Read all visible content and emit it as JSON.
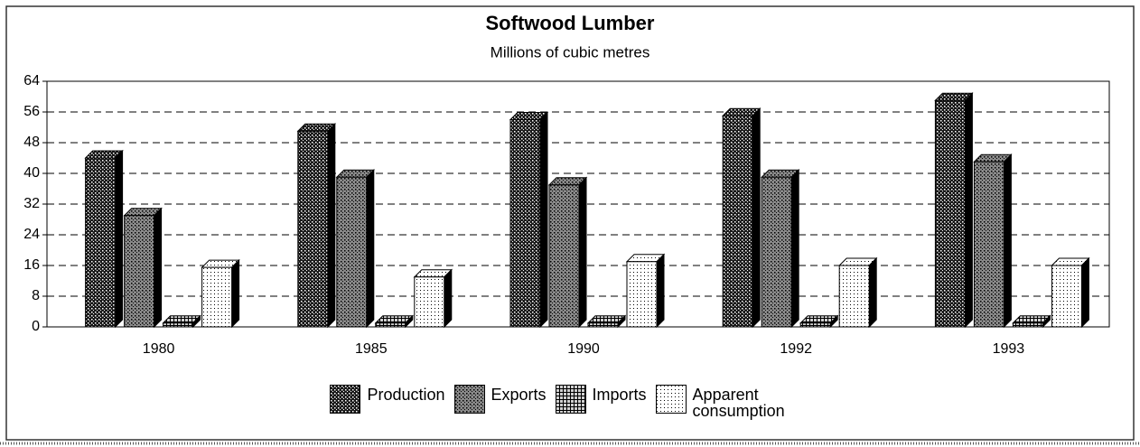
{
  "chart_data": {
    "type": "bar3d",
    "title": "Softwood Lumber",
    "subtitle": "Millions of cubic metres",
    "categories": [
      "1980",
      "1985",
      "1990",
      "1992",
      "1993"
    ],
    "series": [
      {
        "name": "Production",
        "color": "#1a1a1a",
        "values": [
          44,
          51,
          54,
          55,
          59
        ]
      },
      {
        "name": "Exports",
        "color": "#8a8a8a",
        "values": [
          29,
          39,
          37,
          39,
          43
        ]
      },
      {
        "name": "Imports",
        "color": "#d0d0d0",
        "values": [
          1,
          1,
          1,
          1,
          1
        ]
      },
      {
        "name": "Apparent consumption",
        "color": "#ffffff",
        "values": [
          15.5,
          13,
          17,
          16,
          16
        ]
      }
    ],
    "ylim": [
      0,
      64
    ],
    "yticks": [
      0,
      8,
      16,
      24,
      32,
      40,
      48,
      56,
      64
    ],
    "grid": true,
    "legend": "bottom"
  }
}
